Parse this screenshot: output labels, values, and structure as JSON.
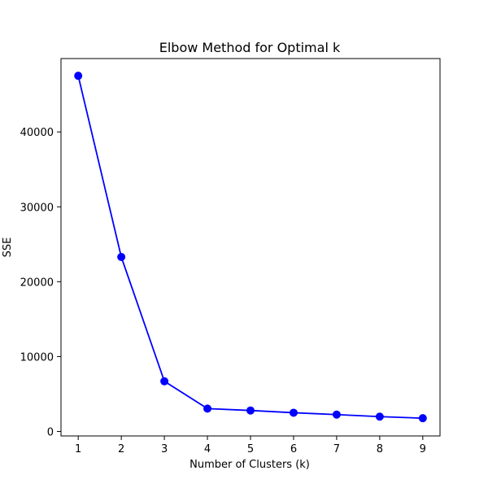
{
  "chart_data": {
    "type": "line",
    "title": "Elbow Method for Optimal k",
    "xlabel": "Number of Clusters (k)",
    "ylabel": "SSE",
    "x": [
      1,
      2,
      3,
      4,
      5,
      6,
      7,
      8,
      9
    ],
    "y": [
      47500,
      23300,
      6700,
      3050,
      2800,
      2500,
      2250,
      1980,
      1770
    ],
    "xlim": [
      0.6,
      9.4
    ],
    "ylim": [
      -600,
      49800
    ],
    "xticks": [
      1,
      2,
      3,
      4,
      5,
      6,
      7,
      8,
      9
    ],
    "yticks": [
      0,
      10000,
      20000,
      30000,
      40000
    ],
    "grid": false,
    "line_color": "#0000ff",
    "marker": "circle"
  }
}
